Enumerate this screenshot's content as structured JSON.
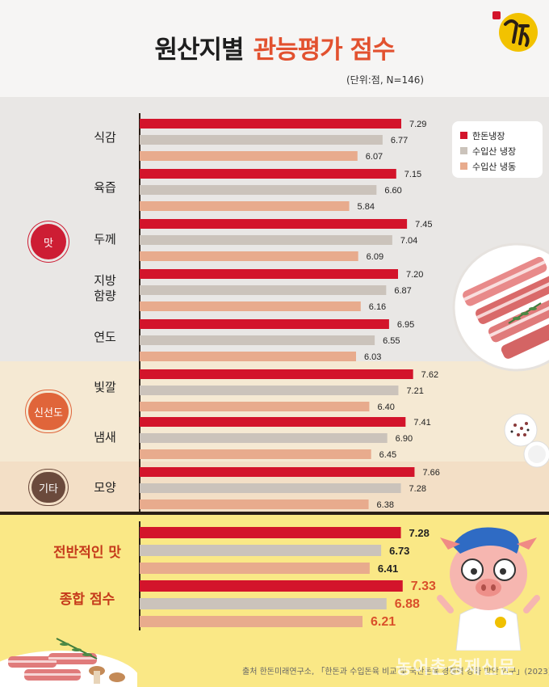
{
  "title": {
    "part1": "원산지별",
    "part2": "관능평가 점수"
  },
  "unit_note": "(단위:점, N=146)",
  "legend": [
    {
      "label": "한돈냉장",
      "color": "#d3142b"
    },
    {
      "label": "수입산 냉장",
      "color": "#cbc3bb"
    },
    {
      "label": "수입산 냉동",
      "color": "#e8ab8d"
    }
  ],
  "groups": [
    {
      "label": "맛",
      "color": "#cd1d34"
    },
    {
      "label": "신선도",
      "color": "#e0653a"
    },
    {
      "label": "기타",
      "color": "#6b4a3c"
    }
  ],
  "source": "출처  한돈미래연구소, 「한돈과 수입돈육 비교 및 국산돈육 경쟁력 강화 방안 연구」(2023)",
  "watermark": "농어촌경제신문",
  "chart_data": {
    "type": "bar",
    "orientation": "horizontal",
    "title": "원산지별 관능평가 점수",
    "subtitle": "(단위:점, N=146)",
    "legend_position": "top-right",
    "grid": false,
    "xlim": [
      0,
      8.5
    ],
    "series": [
      {
        "name": "한돈냉장",
        "color": "#d3142b"
      },
      {
        "name": "수입산 냉장",
        "color": "#cbc3bb"
      },
      {
        "name": "수입산 냉동",
        "color": "#e8ab8d"
      }
    ],
    "categories": [
      {
        "label": "식감",
        "group": "맛",
        "values": [
          7.29,
          6.77,
          6.07
        ]
      },
      {
        "label": "육즙",
        "group": "맛",
        "values": [
          7.15,
          6.6,
          5.84
        ]
      },
      {
        "label": "두께",
        "group": "맛",
        "values": [
          7.45,
          7.04,
          6.09
        ]
      },
      {
        "label": "지방\n함량",
        "group": "맛",
        "values": [
          7.2,
          6.87,
          6.16
        ]
      },
      {
        "label": "연도",
        "group": "맛",
        "values": [
          6.95,
          6.55,
          6.03
        ]
      },
      {
        "label": "빛깔",
        "group": "신선도",
        "values": [
          7.62,
          7.21,
          6.4
        ]
      },
      {
        "label": "냄새",
        "group": "신선도",
        "values": [
          7.41,
          6.9,
          6.45
        ]
      },
      {
        "label": "모양",
        "group": "기타",
        "values": [
          7.66,
          7.28,
          6.38
        ]
      },
      {
        "label": "전반적인 맛",
        "group": "summary",
        "values": [
          7.28,
          6.73,
          6.41
        ]
      },
      {
        "label": "종합 점수",
        "group": "summary",
        "values": [
          7.33,
          6.88,
          6.21
        ]
      }
    ]
  }
}
